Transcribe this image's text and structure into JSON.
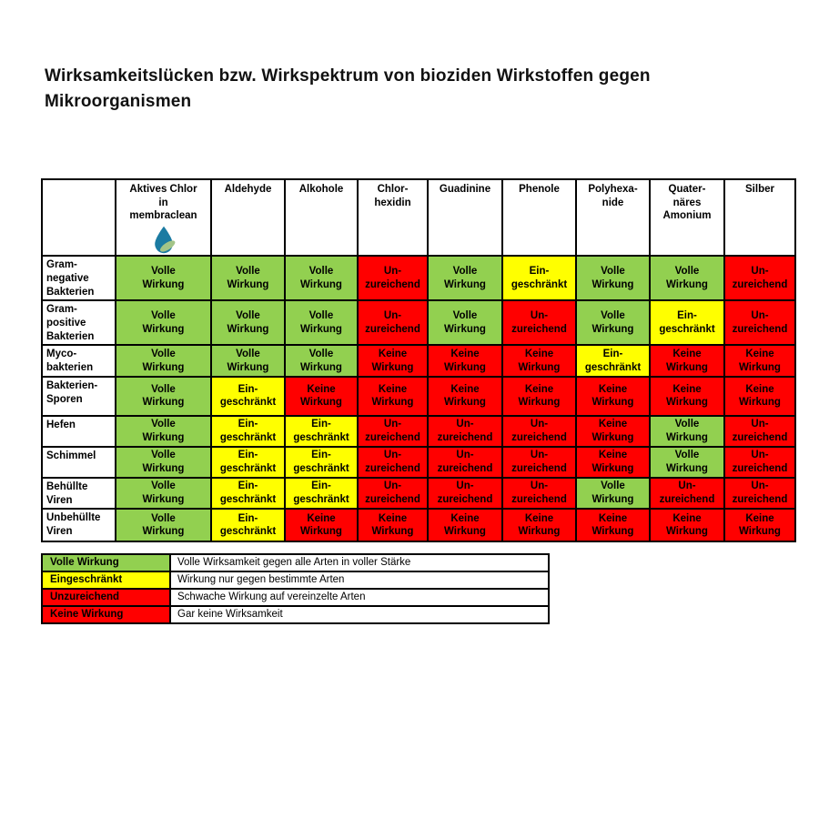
{
  "title": "Wirksamkeitslücken bzw. Wirkspektrum von bioziden Wirkstoffen gegen Mikroorganismen",
  "colors": {
    "full": "#92d050",
    "limited": "#ffff00",
    "insufficient": "#ff0000",
    "none": "#ff0000",
    "border": "#000000",
    "drop_blue": "#1b7ba2",
    "leaf_green": "#a3c487"
  },
  "status_labels": {
    "full": "Volle\nWirkung",
    "limited": "Ein-\ngeschränkt",
    "insufficient": "Un-\nzureichend",
    "none": "Keine\nWirkung"
  },
  "table": {
    "corner_label": "",
    "columns": [
      {
        "label": "Aktives Chlor\nin\nmembraclean",
        "icon": "membraclean-drop-leaf-icon"
      },
      {
        "label": "Aldehyde"
      },
      {
        "label": "Alkohole"
      },
      {
        "label": "Chlor-\nhexidin"
      },
      {
        "label": "Guadinine"
      },
      {
        "label": "Phenole"
      },
      {
        "label": "Polyhexa-\nnide"
      },
      {
        "label": "Quater-\nnäres\nAmonium"
      },
      {
        "label": "Silber"
      }
    ],
    "rows": [
      {
        "label": "Gram-\nnegative\nBakterien",
        "cells": [
          "full",
          "full",
          "full",
          "insufficient",
          "full",
          "limited",
          "full",
          "full",
          "insufficient"
        ]
      },
      {
        "label": "Gram-\npositive\nBakterien",
        "cells": [
          "full",
          "full",
          "full",
          "insufficient",
          "full",
          "insufficient",
          "full",
          "limited",
          "insufficient"
        ]
      },
      {
        "label": "Myco-\nbakterien",
        "cells": [
          "full",
          "full",
          "full",
          "none",
          "none",
          "none",
          "limited",
          "none",
          "none"
        ]
      },
      {
        "label": "Bakterien-\nSporen",
        "cells": [
          "full",
          "limited",
          "none",
          "none",
          "none",
          "none",
          "none",
          "none",
          "none"
        ]
      },
      {
        "label": "Hefen",
        "cells": [
          "full",
          "limited",
          "limited",
          "insufficient",
          "insufficient",
          "insufficient",
          "none",
          "full",
          "insufficient"
        ]
      },
      {
        "label": "Schimmel",
        "cells": [
          "full",
          "limited",
          "limited",
          "insufficient",
          "insufficient",
          "insufficient",
          "none",
          "full",
          "insufficient"
        ]
      },
      {
        "label": "Behüllte\nViren",
        "cells": [
          "full",
          "limited",
          "limited",
          "insufficient",
          "insufficient",
          "insufficient",
          "full",
          "insufficient",
          "insufficient"
        ]
      },
      {
        "label": "Unbehüllte\nViren",
        "cells": [
          "full",
          "limited",
          "none",
          "none",
          "none",
          "none",
          "none",
          "none",
          "none"
        ]
      }
    ]
  },
  "legend": {
    "items": [
      {
        "label": "Volle Wirkung",
        "status": "full",
        "description": "Volle Wirksamkeit gegen alle Arten in voller Stärke"
      },
      {
        "label": "Eingeschränkt",
        "status": "limited",
        "description": "Wirkung nur gegen bestimmte Arten"
      },
      {
        "label": "Unzureichend",
        "status": "insufficient",
        "description": "Schwache Wirkung auf vereinzelte Arten"
      },
      {
        "label": "Keine Wirkung",
        "status": "none",
        "description": "Gar keine Wirksamkeit"
      }
    ]
  },
  "chart_data": {
    "type": "table",
    "title": "Wirksamkeitslücken bzw. Wirkspektrum von bioziden Wirkstoffen gegen Mikroorganismen",
    "columns": [
      "Aktives Chlor in membraclean",
      "Aldehyde",
      "Alkohole",
      "Chlorhexidin",
      "Guadinine",
      "Phenole",
      "Polyhexanide",
      "Quaternäres Amonium",
      "Silber"
    ],
    "rows": [
      "Gram-negative Bakterien",
      "Gram-positive Bakterien",
      "Myco-bakterien",
      "Bakterien-Sporen",
      "Hefen",
      "Schimmel",
      "Behüllte Viren",
      "Unbehüllte Viren"
    ],
    "values": [
      [
        "Volle Wirkung",
        "Volle Wirkung",
        "Volle Wirkung",
        "Unzureichend",
        "Volle Wirkung",
        "Eingeschränkt",
        "Volle Wirkung",
        "Volle Wirkung",
        "Unzureichend"
      ],
      [
        "Volle Wirkung",
        "Volle Wirkung",
        "Volle Wirkung",
        "Unzureichend",
        "Volle Wirkung",
        "Unzureichend",
        "Volle Wirkung",
        "Eingeschränkt",
        "Unzureichend"
      ],
      [
        "Volle Wirkung",
        "Volle Wirkung",
        "Volle Wirkung",
        "Keine Wirkung",
        "Keine Wirkung",
        "Keine Wirkung",
        "Eingeschränkt",
        "Keine Wirkung",
        "Keine Wirkung"
      ],
      [
        "Volle Wirkung",
        "Eingeschränkt",
        "Keine Wirkung",
        "Keine Wirkung",
        "Keine Wirkung",
        "Keine Wirkung",
        "Keine Wirkung",
        "Keine Wirkung",
        "Keine Wirkung"
      ],
      [
        "Volle Wirkung",
        "Eingeschränkt",
        "Eingeschränkt",
        "Unzureichend",
        "Unzureichend",
        "Unzureichend",
        "Keine Wirkung",
        "Volle Wirkung",
        "Unzureichend"
      ],
      [
        "Volle Wirkung",
        "Eingeschränkt",
        "Eingeschränkt",
        "Unzureichend",
        "Unzureichend",
        "Unzureichend",
        "Keine Wirkung",
        "Volle Wirkung",
        "Unzureichend"
      ],
      [
        "Volle Wirkung",
        "Eingeschränkt",
        "Eingeschränkt",
        "Unzureichend",
        "Unzureichend",
        "Unzureichend",
        "Volle Wirkung",
        "Unzureichend",
        "Unzureichend"
      ],
      [
        "Volle Wirkung",
        "Eingeschränkt",
        "Keine Wirkung",
        "Keine Wirkung",
        "Keine Wirkung",
        "Keine Wirkung",
        "Keine Wirkung",
        "Keine Wirkung",
        "Keine Wirkung"
      ]
    ],
    "value_colors": {
      "Volle Wirkung": "#92d050",
      "Eingeschränkt": "#ffff00",
      "Unzureichend": "#ff0000",
      "Keine Wirkung": "#ff0000"
    },
    "legend_position": "bottom"
  }
}
